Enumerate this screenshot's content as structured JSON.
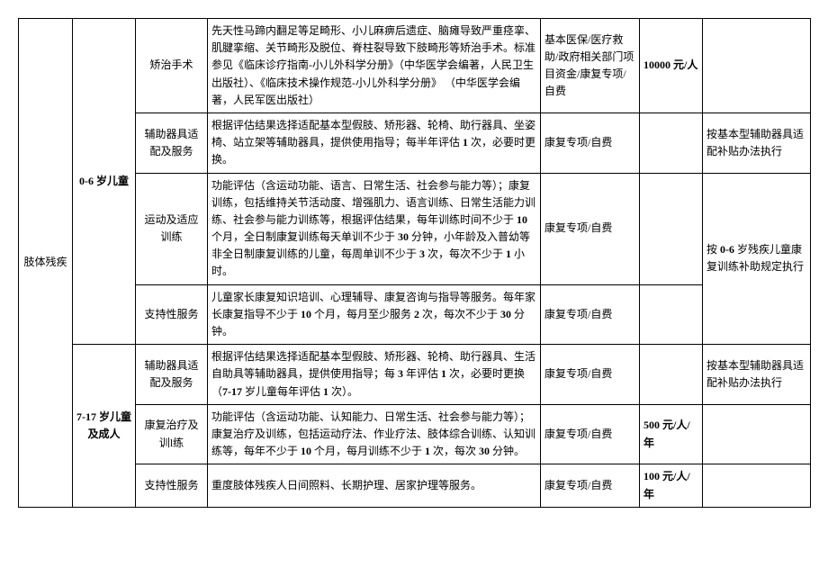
{
  "table": {
    "category": "肢体残疾",
    "group1": {
      "age": "0-6 岁儿童",
      "rows": [
        {
          "item": "矫治手术",
          "content": "先天性马蹄内翻足等足畸形、小儿麻痹后遗症、脑瘫导致严重痉挛、肌腱挛缩、关节畸形及脱位、脊柱裂导致下肢畸形等矫治手术。标准参见《临床诊疗指南-小儿外科学分册》（中华医学会编著，人民卫生出版社）、《临床技术操作规范-小儿外科学分册》\n（中华医学会编著，人民军医出版社）",
          "fund": "基本医保/医疗救助/政府相关部门项目资金/康复专项/自费",
          "std": "10000 元/人",
          "note": ""
        },
        {
          "item": "辅助器具适配及服务",
          "content": "根据评估结果选择适配基本型假肢、矫形器、轮椅、助行器具、坐姿椅、站立架等辅助器具，提供使用指导；每半年评估 1 次，必要时更换。",
          "fund": "康复专项/自费",
          "std": "",
          "note": "按基本型辅助器具适配补贴办法执行"
        },
        {
          "item": "运动及适应训练",
          "content": "功能评估（含运动功能、语言、日常生活、社会参与能力等）；康复训练，包括维持关节活动度、增强肌力、语言训练、日常生活能力训练、社会参与能力训练等，根据评估结果，每年训练时间不少于 10 个月，全日制康复训练每天单训不少于 30 分钟，小年龄及入普幼等非全日制康复训练的儿童，每周单训不少于 3 次，每次不少于 1 小时。",
          "fund": "康复专项/自费",
          "std": "",
          "note": "按 0-6 岁残疾儿童康复训练补助规定执行",
          "note_rowspan": 2
        },
        {
          "item": "支持性服务",
          "content": "儿童家长康复知识培训、心理辅导、康复咨询与指导等服务。每年家长康复指导不少于 10 个月，每月至少服务 2 次，每次不少于 30 分钟。",
          "fund": "康复专项/自费",
          "std": ""
        }
      ]
    },
    "group2": {
      "age": "7-17 岁儿童及成人",
      "rows": [
        {
          "item": "辅助器具适配及服务",
          "content": "根据评估结果选择适配基本型假肢、矫形器、轮椅、助行器具、生活自助具等辅助器具，提供使用指导；每 3 年评估 1 次，必要时更换（7-17 岁儿童每年评估 1 次）。",
          "fund": "康复专项/自费",
          "std": "",
          "note": "按基本型辅助器具适配补贴办法执行"
        },
        {
          "item": "康复治疗及训l练",
          "content": "功能评估（含运动功能、认知能力、日常生活、社会参与能力等）；康复治疗及训练，包括运动疗法、作业疗法、肢体综合训练、认知训练等，每年不少于 10 个月，每月训练不少于 1 次，每次 30 分钟。",
          "fund": "康复专项/自费",
          "std": "500 元/人/年",
          "note": ""
        },
        {
          "item": "支持性服务",
          "content": "重度肢体残疾人日间照料、长期护理、居家护理等服务。",
          "fund": "康复专项/自费",
          "std": "100 元/人/年",
          "note": ""
        }
      ]
    }
  }
}
